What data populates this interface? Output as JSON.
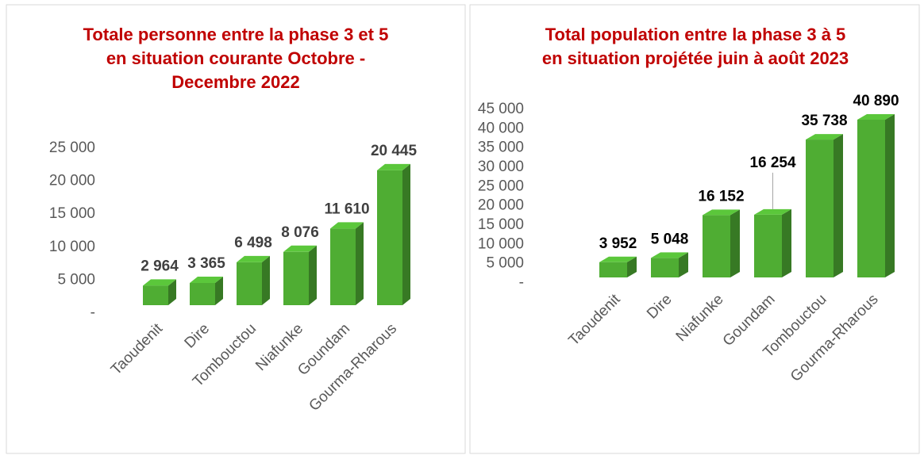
{
  "chart_data": [
    {
      "type": "bar3d",
      "title": [
        "Totale personne entre la phase 3 et 5",
        "en situation courante Octobre -",
        "Decembre 2022"
      ],
      "categories": [
        "Taoudenit",
        "Dire",
        "Tombouctou",
        "Niafunke",
        "Goundam",
        "Gourma-Rharous"
      ],
      "values": [
        2964,
        3365,
        6498,
        8076,
        11610,
        20445
      ],
      "value_labels": [
        "2 964",
        "3 365",
        "6 498",
        "8 076",
        "11 610",
        "20 445"
      ],
      "color": "#4fad33",
      "ylim": [
        0,
        25000
      ],
      "yticks": [
        {
          "value": 0,
          "label": "-"
        },
        {
          "value": 5000,
          "label": "5 000"
        },
        {
          "value": 10000,
          "label": "10 000"
        },
        {
          "value": 15000,
          "label": "15 000"
        },
        {
          "value": 20000,
          "label": "20 000"
        },
        {
          "value": 25000,
          "label": "25 000"
        }
      ],
      "grid": false
    },
    {
      "type": "bar3d",
      "title": [
        "Total population entre la phase 3 à 5",
        "en situation projétée juin à août 2023"
      ],
      "categories": [
        "Taoudenit",
        "Dire",
        "Niafunke",
        "Goundam",
        "Tombouctou",
        "Gourma-Rharous"
      ],
      "values": [
        3952,
        5048,
        16152,
        16254,
        35738,
        40890
      ],
      "value_labels": [
        "3 952",
        "5 048",
        "16 152",
        "16 254",
        "35 738",
        "40 890"
      ],
      "color": "#4fad33",
      "ylim": [
        0,
        45000
      ],
      "yticks": [
        {
          "value": 0,
          "label": "-"
        },
        {
          "value": 5000,
          "label": "5 000"
        },
        {
          "value": 10000,
          "label": "10 000"
        },
        {
          "value": 15000,
          "label": "15 000"
        },
        {
          "value": 20000,
          "label": "20 000"
        },
        {
          "value": 25000,
          "label": "25 000"
        },
        {
          "value": 30000,
          "label": "30 000"
        },
        {
          "value": 35000,
          "label": "35 000"
        },
        {
          "value": 40000,
          "label": "40 000"
        },
        {
          "value": 45000,
          "label": "45 000"
        }
      ],
      "grid": false
    }
  ]
}
